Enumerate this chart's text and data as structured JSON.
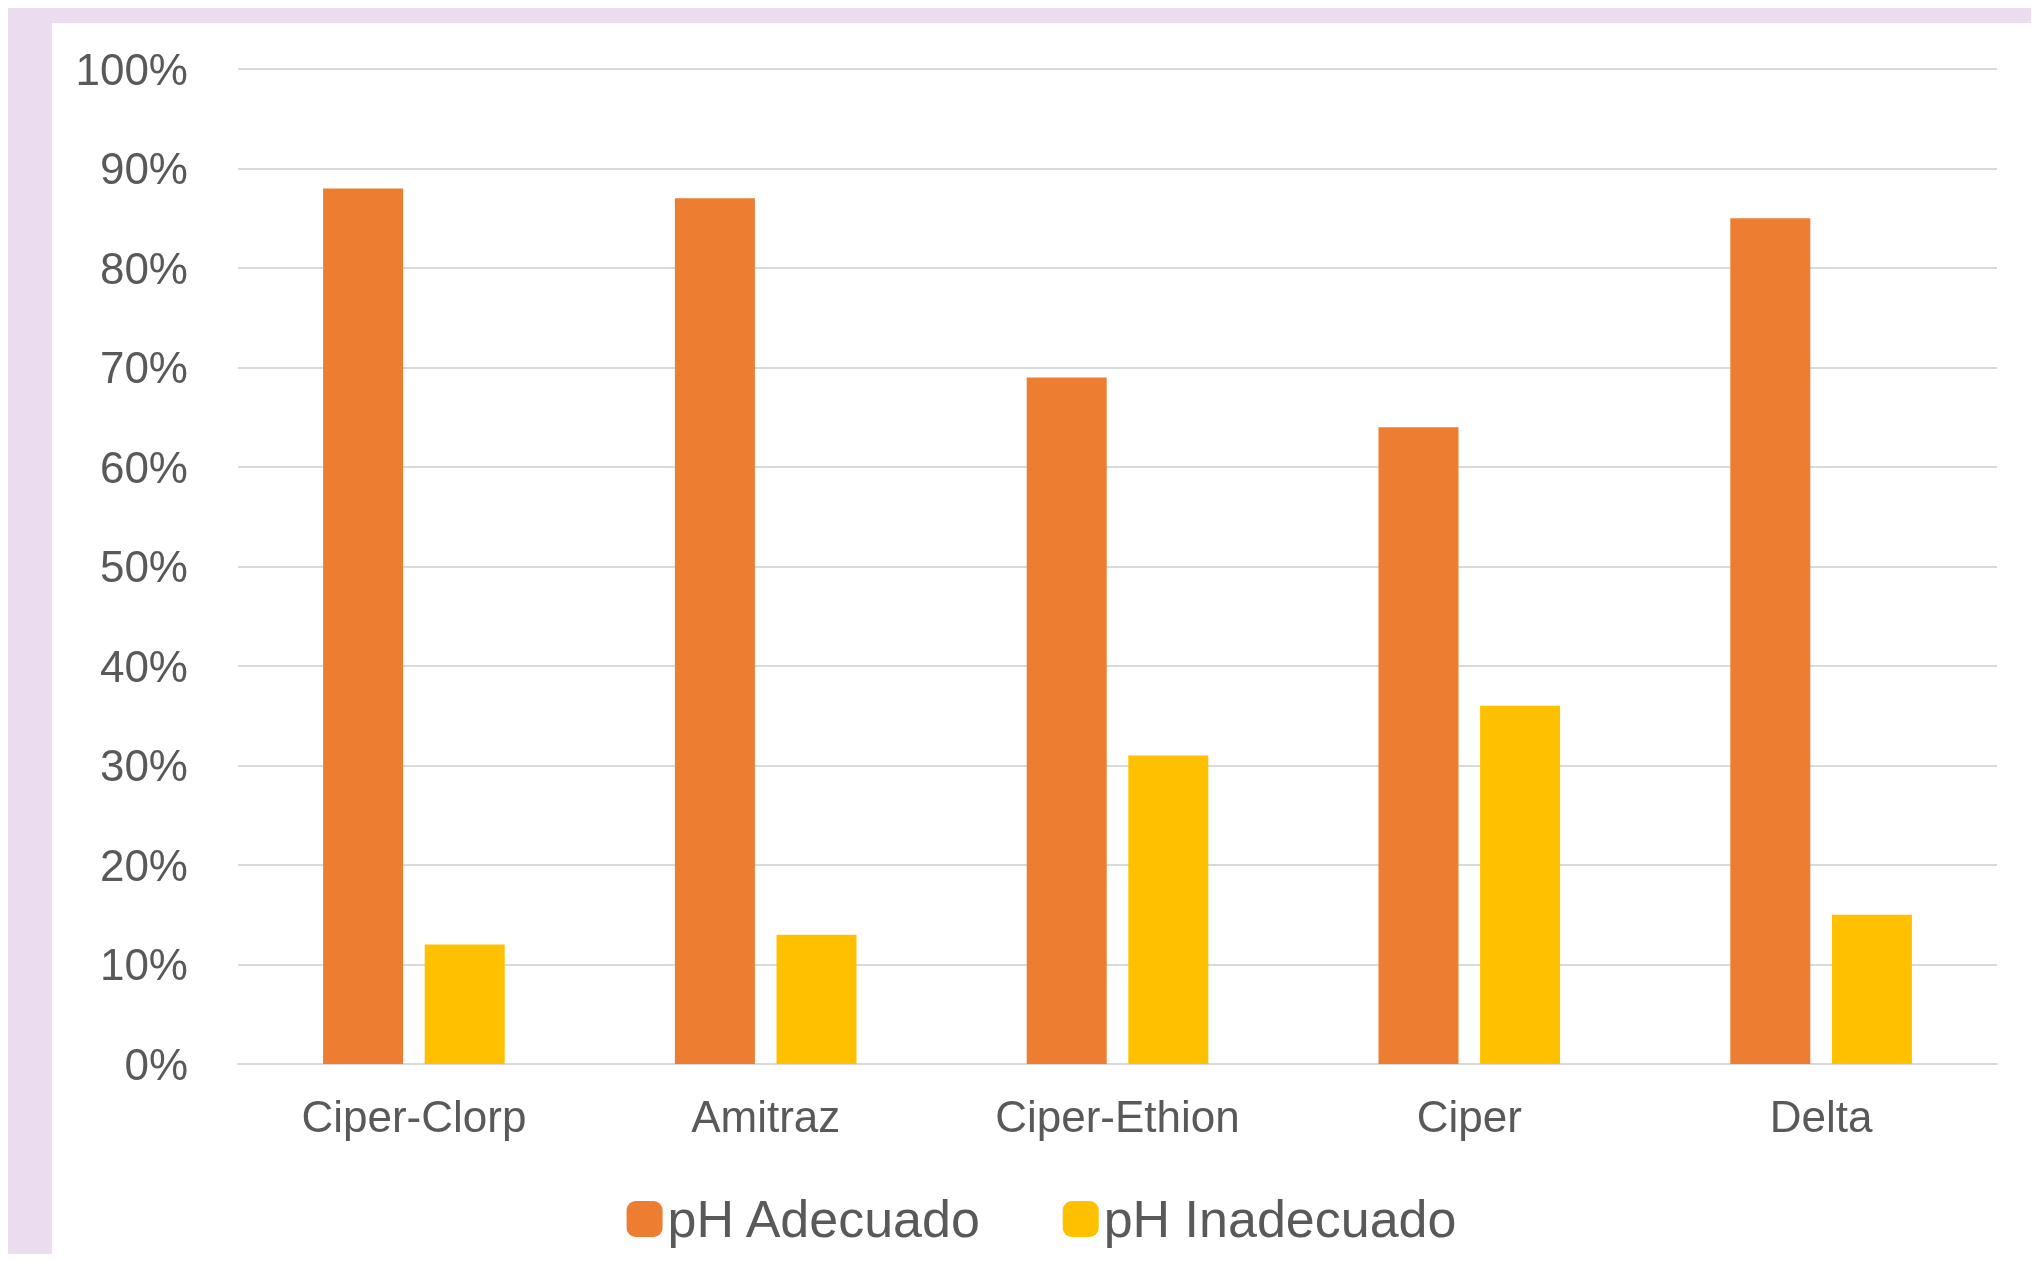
{
  "chart_data": {
    "type": "bar",
    "categories": [
      "Ciper-Clorp",
      "Amitraz",
      "Ciper-Ethion",
      "Ciper",
      "Delta"
    ],
    "series": [
      {
        "name": "pH Adecuado",
        "color": "#ed7d31",
        "values": [
          88,
          87,
          69,
          64,
          85
        ]
      },
      {
        "name": "pH Inadecuado",
        "color": "#ffc000",
        "values": [
          12,
          13,
          31,
          36,
          15
        ]
      }
    ],
    "ylim": [
      0,
      100
    ],
    "yticks": [
      {
        "value": 0,
        "label": "0%"
      },
      {
        "value": 10,
        "label": "10%"
      },
      {
        "value": 20,
        "label": "20%"
      },
      {
        "value": 30,
        "label": "30%"
      },
      {
        "value": 40,
        "label": "40%"
      },
      {
        "value": 50,
        "label": "50%"
      },
      {
        "value": 60,
        "label": "60%"
      },
      {
        "value": 70,
        "label": "70%"
      },
      {
        "value": 80,
        "label": "80%"
      },
      {
        "value": 90,
        "label": "90%"
      },
      {
        "value": 100,
        "label": "100%"
      }
    ],
    "grid": "y",
    "legend": "bottom"
  }
}
